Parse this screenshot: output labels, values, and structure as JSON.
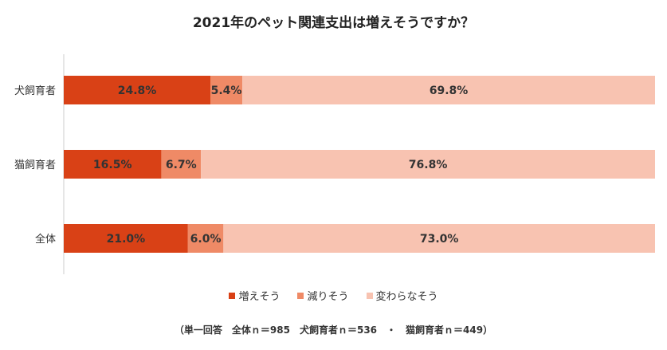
{
  "chart_data": {
    "type": "bar",
    "orientation": "horizontal",
    "stacked": true,
    "title": "2021年のペット関連支出は増えそうですか？",
    "categories": [
      "犬飼育者",
      "猫飼育者",
      "全体"
    ],
    "series": [
      {
        "name": "増えそう",
        "color": "#d94116",
        "values": [
          24.8,
          16.5,
          21.0
        ],
        "labels": [
          "24.8%",
          "16.5%",
          "21.0%"
        ]
      },
      {
        "name": "減りそう",
        "color": "#ef8a66",
        "values": [
          5.4,
          6.7,
          6.0
        ],
        "labels": [
          "5.4%",
          "6.7%",
          "6.0%"
        ]
      },
      {
        "name": "変わらなそう",
        "color": "#f8c3b1",
        "values": [
          69.8,
          76.8,
          73.0
        ],
        "labels": [
          "69.8%",
          "76.8%",
          "73.0%"
        ]
      }
    ],
    "xlim": [
      0,
      100
    ],
    "legend_position": "bottom",
    "note": "（単一回答　全体ｎ＝985　犬飼育者ｎ＝536　・　猫飼育者ｎ＝449）"
  }
}
